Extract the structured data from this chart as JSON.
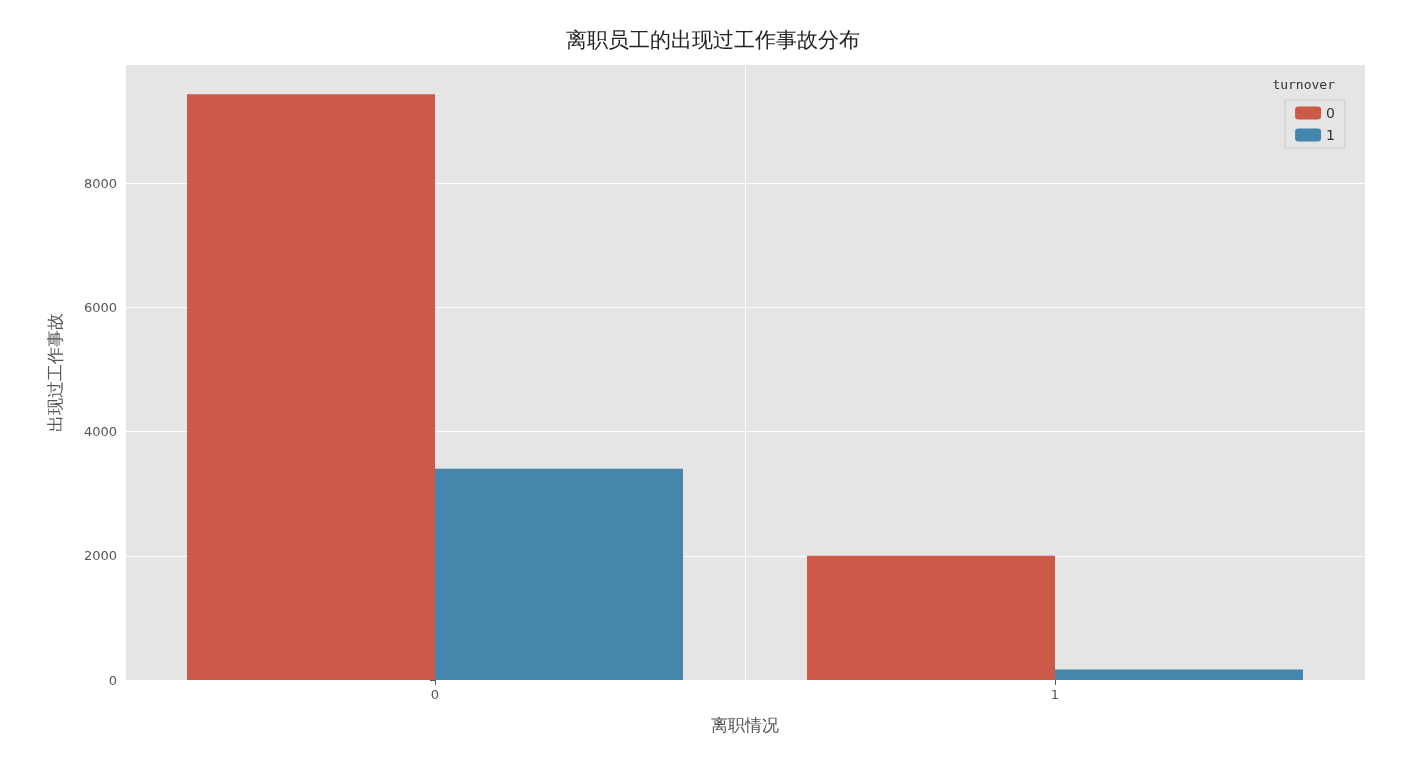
{
  "chart_data": {
    "type": "bar",
    "title": "离职员工的出现过工作事故分布",
    "xlabel": "离职情况",
    "ylabel": "出现过工作事故",
    "legend_title": "turnover",
    "categories": [
      "0",
      "1"
    ],
    "series": [
      {
        "name": "0",
        "color": "#cc5a48",
        "values": [
          9430,
          2000
        ]
      },
      {
        "name": "1",
        "color": "#4586ad",
        "values": [
          3400,
          170
        ]
      }
    ],
    "ylim": [
      0,
      9900
    ],
    "yticks": [
      0,
      2000,
      4000,
      6000,
      8000
    ],
    "grid": true,
    "legend": "top right"
  }
}
